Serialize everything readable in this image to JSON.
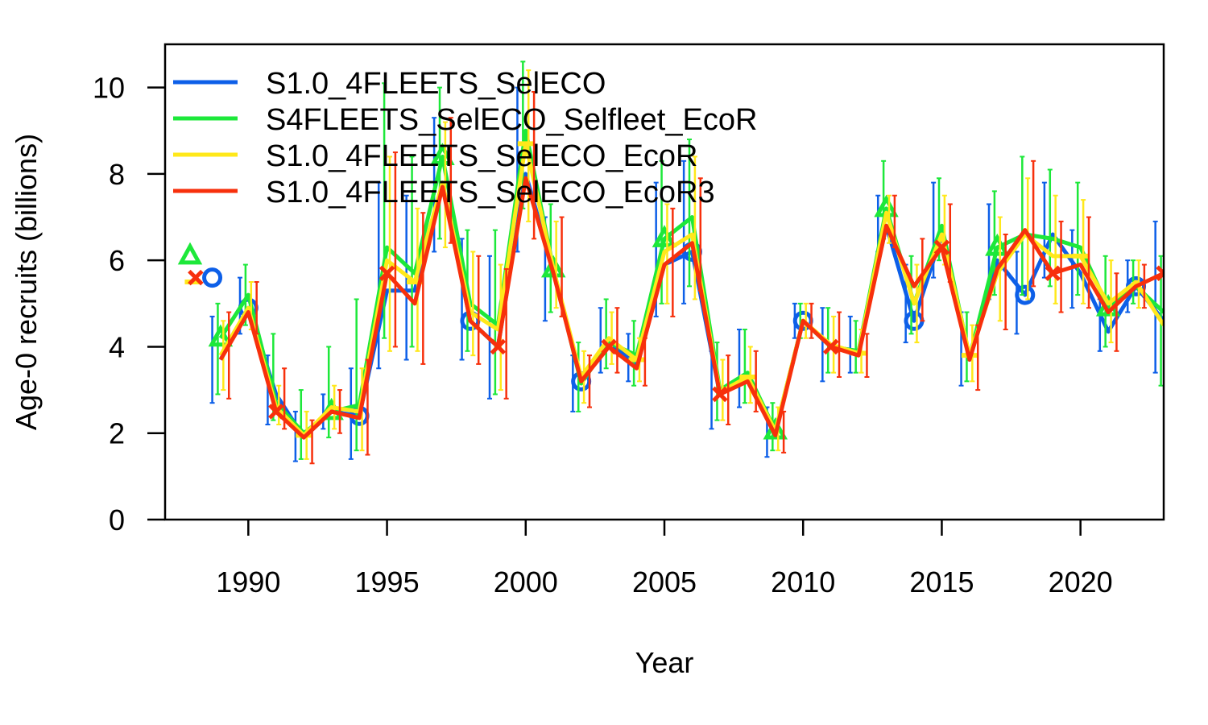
{
  "chart_data": {
    "type": "line",
    "title": "",
    "xlabel": "Year",
    "ylabel": "Age-0 recruits (billions)",
    "xlim": [
      1987,
      2023
    ],
    "ylim": [
      0,
      11
    ],
    "xticks": [
      1990,
      1995,
      2000,
      2005,
      2010,
      2015,
      2020
    ],
    "yticks": [
      0,
      2,
      4,
      6,
      8,
      10
    ],
    "x_tick_labels": [
      "1990",
      "1995",
      "2000",
      "2005",
      "2010",
      "2015",
      "2020"
    ],
    "y_tick_labels": [
      "0",
      "2",
      "4",
      "6",
      "8",
      "10"
    ],
    "legend_position": "top-left",
    "x": [
      1989,
      1990,
      1991,
      1992,
      1993,
      1994,
      1995,
      1996,
      1997,
      1998,
      1999,
      2000,
      2001,
      2002,
      2003,
      2004,
      2005,
      2006,
      2007,
      2008,
      2009,
      2010,
      2011,
      2012,
      2013,
      2014,
      2015,
      2016,
      2017,
      2018,
      2019,
      2020,
      2021,
      2022,
      2023
    ],
    "series": [
      {
        "name": "S1.0_4FLEETS_SelECO",
        "color": "#0d5fe8",
        "marker": "circle",
        "virgin": 5.6,
        "values": [
          3.7,
          4.9,
          2.9,
          1.9,
          2.5,
          2.4,
          5.3,
          5.3,
          7.8,
          4.6,
          4.0,
          8.0,
          5.75,
          3.2,
          4.1,
          3.6,
          5.9,
          6.2,
          2.9,
          3.3,
          2.0,
          4.6,
          4.0,
          3.9,
          6.8,
          4.6,
          6.6,
          3.7,
          6.0,
          5.2,
          6.6,
          5.7,
          4.35,
          5.4,
          4.6
        ],
        "err_low": [
          2.7,
          4.3,
          2.2,
          1.35,
          2.1,
          1.4,
          3.5,
          3.7,
          6.2,
          3.7,
          2.8,
          6.2,
          4.6,
          2.5,
          3.4,
          3.2,
          4.7,
          5.0,
          2.1,
          2.6,
          1.45,
          4.2,
          3.2,
          3.4,
          6.2,
          4.1,
          5.6,
          3.1,
          5.1,
          4.3,
          5.6,
          4.9,
          3.9,
          4.8,
          3.4
        ],
        "err_high": [
          4.7,
          5.6,
          3.8,
          2.5,
          2.9,
          3.5,
          7.8,
          7.5,
          9.3,
          6.5,
          6.1,
          10.0,
          7.0,
          3.8,
          4.9,
          4.3,
          7.8,
          8.3,
          3.9,
          4.4,
          2.6,
          5.0,
          4.9,
          4.7,
          7.5,
          5.9,
          7.8,
          4.8,
          7.3,
          6.2,
          7.8,
          6.7,
          5.1,
          6.0,
          6.9
        ]
      },
      {
        "name": "S4FLEETS_SelECO_Selfleet_EcoR",
        "color": "#1de83a",
        "marker": "triangle",
        "virgin": 6.1,
        "values": [
          4.2,
          5.2,
          2.7,
          2.0,
          2.5,
          2.65,
          6.3,
          5.7,
          8.4,
          5.0,
          4.5,
          9.0,
          5.8,
          3.15,
          4.1,
          3.8,
          6.5,
          7.0,
          3.0,
          3.4,
          2.05,
          4.6,
          4.0,
          3.9,
          7.2,
          5.0,
          6.8,
          3.75,
          6.3,
          6.6,
          6.5,
          6.3,
          4.9,
          5.4,
          4.8
        ],
        "err_low": [
          2.9,
          4.5,
          2.3,
          1.4,
          1.9,
          1.6,
          4.2,
          4.0,
          6.5,
          3.9,
          2.9,
          7.2,
          4.8,
          2.5,
          3.5,
          3.1,
          5.0,
          5.4,
          2.3,
          2.7,
          1.6,
          4.2,
          3.4,
          3.4,
          6.5,
          4.3,
          6.0,
          3.2,
          5.2,
          5.2,
          5.4,
          5.2,
          4.0,
          5.0,
          3.1
        ],
        "err_high": [
          5.0,
          5.9,
          4.3,
          3.0,
          4.0,
          5.1,
          10.1,
          8.4,
          10.0,
          6.7,
          6.7,
          10.6,
          7.3,
          4.1,
          5.1,
          4.6,
          8.3,
          8.8,
          4.1,
          4.4,
          2.7,
          5.0,
          4.9,
          4.6,
          8.3,
          6.1,
          7.9,
          4.8,
          7.6,
          8.4,
          8.1,
          7.8,
          6.1,
          6.0,
          6.1
        ]
      },
      {
        "name": "S1.0_4FLEETS_SelECO_EcoR",
        "color": "#ffe81a",
        "marker": "dash",
        "virgin": 5.5,
        "values": [
          3.8,
          4.9,
          2.6,
          1.95,
          2.6,
          2.5,
          6.0,
          5.5,
          7.8,
          4.8,
          4.4,
          8.7,
          5.8,
          3.3,
          4.2,
          3.7,
          6.2,
          6.6,
          2.95,
          3.3,
          2.05,
          4.6,
          4.05,
          3.85,
          7.1,
          5.0,
          6.6,
          3.8,
          5.7,
          6.6,
          6.1,
          6.1,
          5.0,
          5.5,
          4.5
        ],
        "err_low": [
          3.0,
          4.4,
          2.2,
          1.4,
          2.1,
          1.6,
          3.9,
          3.9,
          6.3,
          3.8,
          3.0,
          6.9,
          4.9,
          2.7,
          3.6,
          3.2,
          5.0,
          5.1,
          2.3,
          2.7,
          1.6,
          4.2,
          3.4,
          3.4,
          6.4,
          4.1,
          5.9,
          3.2,
          4.6,
          5.1,
          5.0,
          5.0,
          4.1,
          4.9,
          3.9
        ],
        "err_high": [
          4.6,
          5.5,
          3.1,
          2.5,
          3.1,
          3.5,
          8.4,
          7.2,
          9.2,
          6.2,
          5.9,
          10.4,
          6.9,
          3.9,
          4.8,
          4.2,
          7.3,
          8.4,
          3.7,
          4.0,
          2.6,
          5.0,
          4.7,
          4.4,
          7.5,
          5.9,
          7.5,
          4.5,
          7.0,
          7.9,
          7.5,
          7.4,
          6.0,
          6.0,
          5.0
        ]
      },
      {
        "name": "S1.0_4FLEETS_SelECO_EcoR3",
        "color": "#f7300c",
        "marker": "cross",
        "virgin": 5.6,
        "values": [
          3.7,
          4.8,
          2.5,
          1.9,
          2.5,
          2.35,
          5.7,
          5.0,
          7.7,
          4.6,
          4.0,
          7.9,
          5.7,
          3.2,
          4.0,
          3.5,
          5.9,
          6.4,
          2.9,
          3.2,
          1.95,
          4.6,
          4.0,
          3.8,
          6.8,
          5.4,
          6.3,
          3.7,
          5.8,
          6.7,
          5.7,
          5.9,
          4.8,
          5.4,
          5.7
        ],
        "err_low": [
          2.8,
          4.3,
          2.1,
          1.3,
          2.0,
          1.5,
          4.0,
          3.6,
          6.4,
          3.6,
          2.8,
          6.5,
          4.7,
          2.6,
          3.4,
          3.1,
          4.7,
          5.3,
          2.2,
          2.5,
          1.55,
          4.2,
          3.3,
          3.3,
          6.3,
          4.6,
          5.5,
          3.0,
          4.4,
          5.4,
          4.8,
          4.9,
          3.9,
          4.9,
          4.6
        ],
        "err_high": [
          4.8,
          5.5,
          3.5,
          2.3,
          3.0,
          3.7,
          8.5,
          7.1,
          9.3,
          6.1,
          5.8,
          9.9,
          7.0,
          3.8,
          4.9,
          4.2,
          7.2,
          7.9,
          3.8,
          3.9,
          2.5,
          5.0,
          4.8,
          4.3,
          7.5,
          6.5,
          7.3,
          4.5,
          6.6,
          8.3,
          6.9,
          7.0,
          5.7,
          5.9,
          6.9
        ]
      }
    ]
  }
}
